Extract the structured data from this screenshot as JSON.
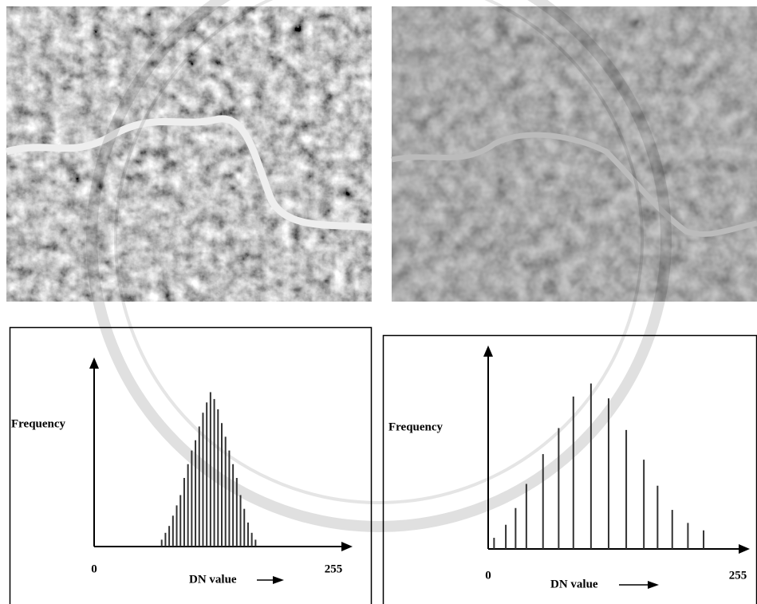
{
  "chart_data": [
    {
      "type": "stem",
      "y_label": "Frequency",
      "x_label": "DN value",
      "color": "#333333",
      "x": [
        72,
        76,
        80,
        84,
        88,
        92,
        96,
        100,
        104,
        108,
        112,
        116,
        120,
        124,
        128,
        132,
        136,
        140,
        144,
        148,
        152,
        156,
        160,
        164,
        168,
        172
      ],
      "values": [
        4,
        8,
        12,
        18,
        24,
        30,
        40,
        48,
        56,
        62,
        70,
        78,
        84,
        90,
        86,
        80,
        72,
        64,
        56,
        48,
        40,
        30,
        22,
        14,
        8,
        4
      ],
      "xlim": [
        0,
        255
      ],
      "xticks": [
        0,
        255
      ],
      "ylim": [
        0,
        100
      ]
    },
    {
      "type": "stem",
      "y_label": "Frequency",
      "x_label": "DN value",
      "color": "#333333",
      "x": [
        6,
        18,
        28,
        39,
        56,
        72,
        87,
        105,
        123,
        141,
        159,
        173,
        188,
        204,
        220
      ],
      "values": [
        6,
        13,
        22,
        35,
        51,
        65,
        82,
        89,
        81,
        64,
        48,
        34,
        21,
        14,
        10
      ],
      "xlim": [
        0,
        255
      ],
      "xticks": [
        0,
        255
      ],
      "ylim": [
        0,
        100
      ]
    }
  ]
}
